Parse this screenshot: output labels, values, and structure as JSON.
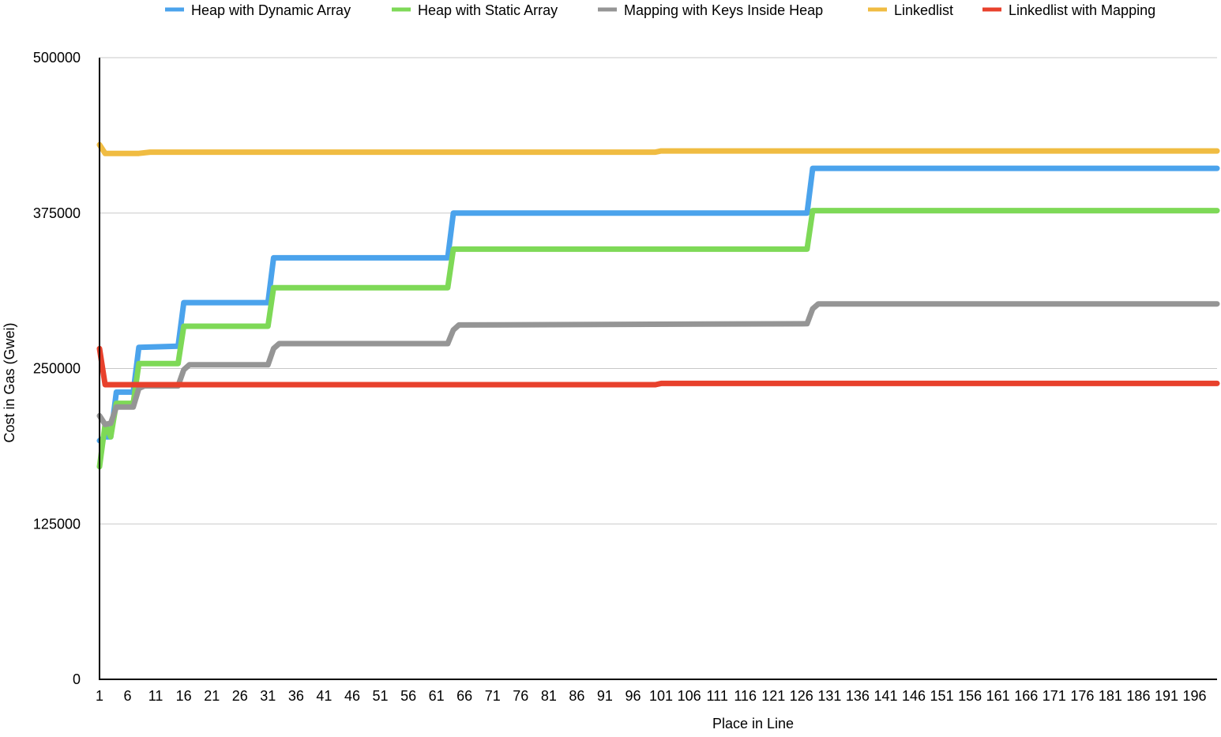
{
  "chart_data": {
    "type": "line",
    "title": "",
    "xlabel": "Place in Line",
    "ylabel": "Cost in Gas (Gwei)",
    "xlim": [
      1,
      200
    ],
    "ylim": [
      0,
      500000
    ],
    "grid": "horizontal",
    "legend_position": "top",
    "y_ticks": [
      "0",
      "125000",
      "250000",
      "375000",
      "500000"
    ],
    "x_tick_labels": [
      "1",
      "6",
      "11",
      "16",
      "21",
      "26",
      "31",
      "36",
      "41",
      "46",
      "51",
      "56",
      "61",
      "66",
      "71",
      "76",
      "81",
      "86",
      "91",
      "96",
      "101",
      "106",
      "111",
      "116",
      "121",
      "126",
      "131",
      "136",
      "141",
      "146",
      "151",
      "156",
      "161",
      "166",
      "171",
      "176",
      "181",
      "186",
      "191",
      "196"
    ],
    "series": [
      {
        "name": "Heap with Dynamic Array",
        "color": "#4ba3ec",
        "points": [
          [
            1,
            192000
          ],
          [
            2,
            195000
          ],
          [
            3,
            195000
          ],
          [
            4,
            231000
          ],
          [
            7,
            231000
          ],
          [
            8,
            267000
          ],
          [
            15,
            268000
          ],
          [
            16,
            303000
          ],
          [
            31,
            303000
          ],
          [
            32,
            339000
          ],
          [
            63,
            339000
          ],
          [
            64,
            375000
          ],
          [
            127,
            375000
          ],
          [
            128,
            411000
          ],
          [
            200,
            411000
          ]
        ]
      },
      {
        "name": "Heap with Static Array",
        "color": "#7ed957",
        "points": [
          [
            1,
            171000
          ],
          [
            2,
            205000
          ],
          [
            3,
            195000
          ],
          [
            4,
            222000
          ],
          [
            7,
            222000
          ],
          [
            8,
            254000
          ],
          [
            15,
            254000
          ],
          [
            16,
            284000
          ],
          [
            31,
            284000
          ],
          [
            32,
            315000
          ],
          [
            63,
            315000
          ],
          [
            64,
            346000
          ],
          [
            127,
            346000
          ],
          [
            128,
            377000
          ],
          [
            200,
            377000
          ]
        ]
      },
      {
        "name": "Mapping with Keys Inside Heap",
        "color": "#959595",
        "points": [
          [
            1,
            212000
          ],
          [
            2,
            205000
          ],
          [
            3,
            206000
          ],
          [
            4,
            219000
          ],
          [
            7,
            219000
          ],
          [
            8,
            234000
          ],
          [
            9,
            236000
          ],
          [
            15,
            236000
          ],
          [
            16,
            249000
          ],
          [
            17,
            253000
          ],
          [
            31,
            253000
          ],
          [
            32,
            266000
          ],
          [
            33,
            270000
          ],
          [
            63,
            270000
          ],
          [
            64,
            281000
          ],
          [
            65,
            285000
          ],
          [
            127,
            286000
          ],
          [
            128,
            298000
          ],
          [
            129,
            302000
          ],
          [
            200,
            302000
          ]
        ]
      },
      {
        "name": "Linkedlist",
        "color": "#f0bc42",
        "points": [
          [
            1,
            430000
          ],
          [
            2,
            423000
          ],
          [
            8,
            423000
          ],
          [
            10,
            424000
          ],
          [
            100,
            424000
          ],
          [
            101,
            425000
          ],
          [
            200,
            425000
          ]
        ]
      },
      {
        "name": "Linkedlist with Mapping",
        "color": "#e8412c",
        "points": [
          [
            1,
            266000
          ],
          [
            2,
            237000
          ],
          [
            100,
            237000
          ],
          [
            101,
            238000
          ],
          [
            200,
            238000
          ]
        ]
      }
    ]
  }
}
